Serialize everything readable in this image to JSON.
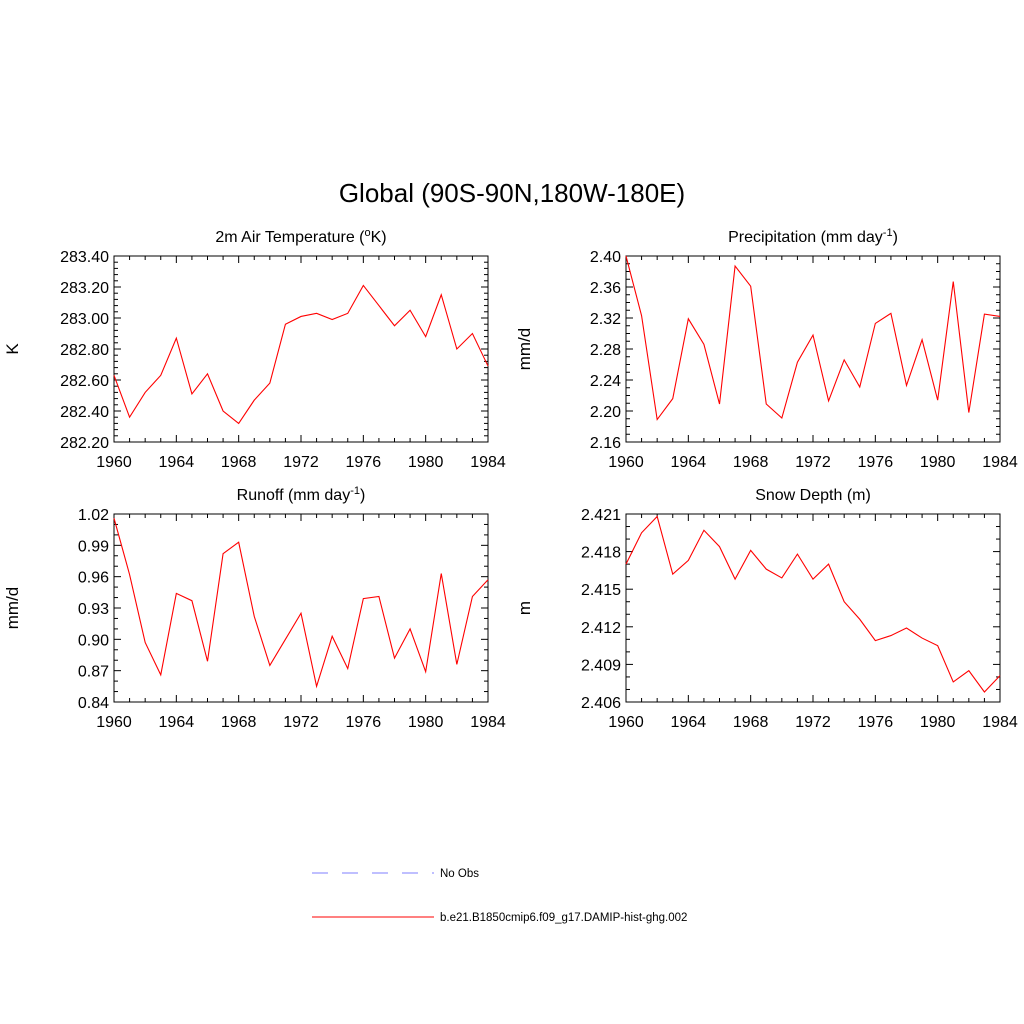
{
  "main_title": "Global (90S-90N,180W-180E)",
  "colors": {
    "model_line": "#ff0000",
    "obs_line": "#9999ff"
  },
  "legend": [
    {
      "label": "No Obs",
      "style": "dashed",
      "color": "#9999ff"
    },
    {
      "label": "b.e21.B1850cmip6.f09_g17.DAMIP-hist-ghg.002",
      "style": "solid",
      "color": "#ff0000"
    }
  ],
  "chart_data": [
    {
      "type": "line",
      "title": "2m Air Temperature (",
      "title_sup": "o",
      "title_after": "K)",
      "ylabel": "K",
      "xlim": [
        1960,
        1984
      ],
      "ylim": [
        282.2,
        283.4
      ],
      "xticks": [
        1960,
        1964,
        1968,
        1972,
        1976,
        1980,
        1984
      ],
      "yticks": [
        282.2,
        282.4,
        282.6,
        282.8,
        283.0,
        283.2,
        283.4
      ],
      "ytick_labels": [
        "282.20",
        "282.40",
        "282.60",
        "282.80",
        "283.00",
        "283.20",
        "283.40"
      ],
      "yminor": 4,
      "series": [
        {
          "x": [
            1960,
            1961,
            1962,
            1963,
            1964,
            1965,
            1966,
            1967,
            1968,
            1969,
            1970,
            1971,
            1972,
            1973,
            1974,
            1975,
            1976,
            1977,
            1978,
            1979,
            1980,
            1981,
            1982,
            1983,
            1984
          ],
          "values": [
            282.63,
            282.36,
            282.52,
            282.63,
            282.87,
            282.51,
            282.64,
            282.4,
            282.32,
            282.47,
            282.58,
            282.96,
            283.01,
            283.03,
            282.99,
            283.03,
            283.21,
            283.08,
            282.95,
            283.05,
            282.88,
            283.15,
            282.8,
            282.9,
            282.69
          ]
        }
      ]
    },
    {
      "type": "line",
      "title": "Precipitation (mm day",
      "title_sup": "-1",
      "title_after": ")",
      "ylabel": "mm/d",
      "xlim": [
        1960,
        1984
      ],
      "ylim": [
        2.16,
        2.4
      ],
      "xticks": [
        1960,
        1964,
        1968,
        1972,
        1976,
        1980,
        1984
      ],
      "yticks": [
        2.16,
        2.2,
        2.24,
        2.28,
        2.32,
        2.36,
        2.4
      ],
      "ytick_labels": [
        "2.16",
        "2.20",
        "2.24",
        "2.28",
        "2.32",
        "2.36",
        "2.40"
      ],
      "yminor": 3,
      "series": [
        {
          "x": [
            1960,
            1961,
            1962,
            1963,
            1964,
            1965,
            1966,
            1967,
            1968,
            1969,
            1970,
            1971,
            1972,
            1973,
            1974,
            1975,
            1976,
            1977,
            1978,
            1979,
            1980,
            1981,
            1982,
            1983,
            1984
          ],
          "values": [
            2.4,
            2.323,
            2.189,
            2.216,
            2.319,
            2.286,
            2.209,
            2.387,
            2.361,
            2.209,
            2.191,
            2.263,
            2.298,
            2.213,
            2.266,
            2.231,
            2.313,
            2.326,
            2.233,
            2.292,
            2.214,
            2.367,
            2.198,
            2.325,
            2.322
          ]
        }
      ]
    },
    {
      "type": "line",
      "title": "Runoff (mm day",
      "title_sup": "-1",
      "title_after": ")",
      "ylabel": "mm/d",
      "xlim": [
        1960,
        1984
      ],
      "ylim": [
        0.84,
        1.02
      ],
      "xticks": [
        1960,
        1964,
        1968,
        1972,
        1976,
        1980,
        1984
      ],
      "yticks": [
        0.84,
        0.87,
        0.9,
        0.93,
        0.96,
        0.99,
        1.02
      ],
      "ytick_labels": [
        "0.84",
        "0.87",
        "0.90",
        "0.93",
        "0.96",
        "0.99",
        "1.02"
      ],
      "yminor": 2,
      "series": [
        {
          "x": [
            1960,
            1961,
            1962,
            1963,
            1964,
            1965,
            1966,
            1967,
            1968,
            1969,
            1970,
            1971,
            1972,
            1973,
            1974,
            1975,
            1976,
            1977,
            1978,
            1979,
            1980,
            1981,
            1982,
            1983,
            1984
          ],
          "values": [
            1.016,
            0.962,
            0.897,
            0.866,
            0.944,
            0.937,
            0.879,
            0.982,
            0.993,
            0.922,
            0.875,
            0.9,
            0.925,
            0.855,
            0.903,
            0.872,
            0.939,
            0.941,
            0.882,
            0.91,
            0.869,
            0.963,
            0.876,
            0.941,
            0.957
          ]
        }
      ]
    },
    {
      "type": "line",
      "title": "Snow Depth (m)",
      "title_sup": "",
      "title_after": "",
      "ylabel": "m",
      "xlim": [
        1960,
        1984
      ],
      "ylim": [
        2.406,
        2.421
      ],
      "xticks": [
        1960,
        1964,
        1968,
        1972,
        1976,
        1980,
        1984
      ],
      "yticks": [
        2.406,
        2.409,
        2.412,
        2.415,
        2.418,
        2.421
      ],
      "ytick_labels": [
        "2.406",
        "2.409",
        "2.412",
        "2.415",
        "2.418",
        "2.421"
      ],
      "yminor": 2,
      "series": [
        {
          "x": [
            1960,
            1961,
            1962,
            1963,
            1964,
            1965,
            1966,
            1967,
            1968,
            1969,
            1970,
            1971,
            1972,
            1973,
            1974,
            1975,
            1976,
            1977,
            1978,
            1979,
            1980,
            1981,
            1982,
            1983,
            1984
          ],
          "values": [
            2.417,
            2.4195,
            2.4208,
            2.4162,
            2.4173,
            2.4197,
            2.4184,
            2.4158,
            2.4181,
            2.4166,
            2.4159,
            2.4178,
            2.4158,
            2.417,
            2.414,
            2.4126,
            2.4109,
            2.4113,
            2.4119,
            2.4111,
            2.4105,
            2.4076,
            2.4085,
            2.4068,
            2.4081
          ]
        }
      ]
    }
  ]
}
